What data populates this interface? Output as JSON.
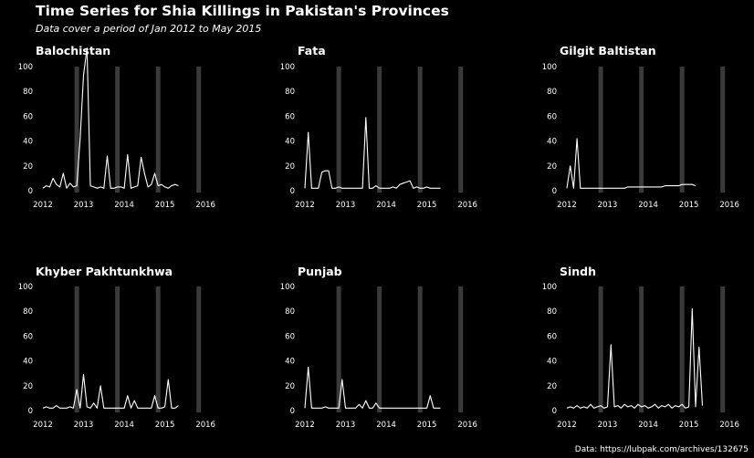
{
  "title": "Time Series for Shia Killings in Pakistan's Provinces",
  "subtitle": "Data cover a period of Jan 2012  to May 2015",
  "caption": "Data: https://lubpak.com/archives/132675",
  "chart_data": [
    {
      "type": "line",
      "panel": "Balochistan",
      "title": "Balochistan",
      "xlim": [
        "2012-01",
        "2016-05"
      ],
      "ylim": [
        0,
        100
      ],
      "x_ticks": [
        "2012",
        "2013",
        "2014",
        "2015",
        "2016"
      ],
      "y_ticks": [
        "0",
        "20",
        "40",
        "60",
        "80",
        "100"
      ],
      "shaded_periods": [
        "2012-11",
        "2013-11",
        "2014-11",
        "2015-11"
      ],
      "series": [
        {
          "x": [
            "2012-01",
            "2012-02",
            "2012-03",
            "2012-04",
            "2012-05",
            "2012-06",
            "2012-07",
            "2012-08",
            "2012-09",
            "2012-10",
            "2012-11",
            "2012-12",
            "2013-01",
            "2013-02",
            "2013-03",
            "2013-04",
            "2013-05",
            "2013-06",
            "2013-07",
            "2013-08",
            "2013-09",
            "2013-10",
            "2013-11",
            "2013-12",
            "2014-01",
            "2014-02",
            "2014-03",
            "2014-04",
            "2014-05",
            "2014-06",
            "2014-07",
            "2014-08",
            "2014-09",
            "2014-10",
            "2014-11",
            "2014-12",
            "2015-01",
            "2015-02",
            "2015-03",
            "2015-04",
            "2015-05"
          ],
          "y": [
            2,
            4,
            3,
            10,
            5,
            3,
            14,
            2,
            6,
            3,
            4,
            42,
            93,
            115,
            4,
            3,
            2,
            3,
            2,
            28,
            2,
            2,
            3,
            3,
            2,
            29,
            2,
            3,
            4,
            27,
            14,
            3,
            5,
            14,
            4,
            5,
            3,
            2,
            4,
            5,
            4
          ]
        }
      ]
    },
    {
      "type": "line",
      "panel": "Fata",
      "title": "Fata",
      "xlim": [
        "2012-01",
        "2016-05"
      ],
      "ylim": [
        0,
        100
      ],
      "x_ticks": [
        "2012",
        "2013",
        "2014",
        "2015",
        "2016"
      ],
      "y_ticks": [
        "0",
        "20",
        "40",
        "60",
        "80",
        "100"
      ],
      "shaded_periods": [
        "2012-11",
        "2013-11",
        "2014-11",
        "2015-11"
      ],
      "series": [
        {
          "x": [
            "2012-01",
            "2012-02",
            "2012-03",
            "2012-04",
            "2012-05",
            "2012-06",
            "2012-07",
            "2012-08",
            "2012-09",
            "2012-10",
            "2012-11",
            "2012-12",
            "2013-01",
            "2013-02",
            "2013-03",
            "2013-04",
            "2013-05",
            "2013-06",
            "2013-07",
            "2013-08",
            "2013-09",
            "2013-10",
            "2013-11",
            "2013-12",
            "2014-01",
            "2014-02",
            "2014-03",
            "2014-04",
            "2014-05",
            "2014-06",
            "2014-07",
            "2014-08",
            "2014-09",
            "2014-10",
            "2014-11",
            "2014-12",
            "2015-01",
            "2015-02",
            "2015-03",
            "2015-04",
            "2015-05"
          ],
          "y": [
            2,
            47,
            2,
            2,
            2,
            15,
            16,
            16,
            2,
            2,
            3,
            2,
            2,
            2,
            2,
            2,
            2,
            2,
            59,
            2,
            2,
            4,
            2,
            2,
            2,
            2,
            3,
            2,
            5,
            6,
            7,
            8,
            2,
            3,
            2,
            2,
            3,
            2,
            2,
            2,
            2
          ]
        }
      ]
    },
    {
      "type": "line",
      "panel": "Gilgit Baltistan",
      "title": "Gilgit Baltistan",
      "xlim": [
        "2012-01",
        "2016-05"
      ],
      "ylim": [
        0,
        100
      ],
      "x_ticks": [
        "2012",
        "2013",
        "2014",
        "2015",
        "2016"
      ],
      "y_ticks": [
        "0",
        "20",
        "40",
        "60",
        "80",
        "100"
      ],
      "shaded_periods": [
        "2012-11",
        "2013-11",
        "2014-11",
        "2015-11"
      ],
      "series": [
        {
          "x": [
            "2012-01",
            "2012-02",
            "2012-03",
            "2012-04",
            "2012-05",
            "2012-06",
            "2012-07",
            "2012-08",
            "2012-09",
            "2012-10",
            "2012-11",
            "2012-12",
            "2013-01",
            "2013-02",
            "2013-03",
            "2013-04",
            "2013-05",
            "2013-06",
            "2013-07",
            "2013-08",
            "2013-09",
            "2013-10",
            "2013-11",
            "2013-12",
            "2014-01",
            "2014-02",
            "2014-03",
            "2014-04",
            "2014-05",
            "2014-06",
            "2014-07",
            "2014-08",
            "2014-09",
            "2014-10",
            "2014-11",
            "2014-12",
            "2015-01",
            "2015-02",
            "2015-03"
          ],
          "y": [
            2,
            20,
            2,
            42,
            2,
            2,
            2,
            2,
            2,
            2,
            2,
            2,
            2,
            2,
            2,
            2,
            2,
            2,
            3,
            3,
            3,
            3,
            3,
            3,
            3,
            3,
            3,
            3,
            3,
            4,
            4,
            4,
            4,
            4,
            5,
            5,
            5,
            5,
            4
          ]
        }
      ]
    },
    {
      "type": "line",
      "panel": "Khyber Pakhtunkhwa",
      "title": "Khyber Pakhtunkhwa",
      "xlim": [
        "2012-01",
        "2016-05"
      ],
      "ylim": [
        0,
        100
      ],
      "x_ticks": [
        "2012",
        "2013",
        "2014",
        "2015",
        "2016"
      ],
      "y_ticks": [
        "0",
        "20",
        "40",
        "60",
        "80",
        "100"
      ],
      "shaded_periods": [
        "2012-11",
        "2013-11",
        "2014-11",
        "2015-11"
      ],
      "series": [
        {
          "x": [
            "2012-01",
            "2012-02",
            "2012-03",
            "2012-04",
            "2012-05",
            "2012-06",
            "2012-07",
            "2012-08",
            "2012-09",
            "2012-10",
            "2012-11",
            "2012-12",
            "2013-01",
            "2013-02",
            "2013-03",
            "2013-04",
            "2013-05",
            "2013-06",
            "2013-07",
            "2013-08",
            "2013-09",
            "2013-10",
            "2013-11",
            "2013-12",
            "2014-01",
            "2014-02",
            "2014-03",
            "2014-04",
            "2014-05",
            "2014-06",
            "2014-07",
            "2014-08",
            "2014-09",
            "2014-10",
            "2014-11",
            "2014-12",
            "2015-01",
            "2015-02",
            "2015-03",
            "2015-04",
            "2015-05"
          ],
          "y": [
            2,
            3,
            2,
            2,
            4,
            2,
            2,
            2,
            3,
            2,
            17,
            2,
            29,
            3,
            2,
            6,
            2,
            20,
            2,
            2,
            2,
            2,
            2,
            2,
            2,
            12,
            2,
            8,
            2,
            2,
            2,
            2,
            2,
            12,
            2,
            2,
            3,
            25,
            2,
            2,
            4
          ]
        }
      ]
    },
    {
      "type": "line",
      "panel": "Punjab",
      "title": "Punjab",
      "xlim": [
        "2012-01",
        "2016-05"
      ],
      "ylim": [
        0,
        100
      ],
      "x_ticks": [
        "2012",
        "2013",
        "2014",
        "2015",
        "2016"
      ],
      "y_ticks": [
        "0",
        "20",
        "40",
        "60",
        "80",
        "100"
      ],
      "shaded_periods": [
        "2012-11",
        "2013-11",
        "2014-11",
        "2015-11"
      ],
      "series": [
        {
          "x": [
            "2012-01",
            "2012-02",
            "2012-03",
            "2012-04",
            "2012-05",
            "2012-06",
            "2012-07",
            "2012-08",
            "2012-09",
            "2012-10",
            "2012-11",
            "2012-12",
            "2013-01",
            "2013-02",
            "2013-03",
            "2013-04",
            "2013-05",
            "2013-06",
            "2013-07",
            "2013-08",
            "2013-09",
            "2013-10",
            "2013-11",
            "2013-12",
            "2014-01",
            "2014-02",
            "2014-03",
            "2014-04",
            "2014-05",
            "2014-06",
            "2014-07",
            "2014-08",
            "2014-09",
            "2014-10",
            "2014-11",
            "2014-12",
            "2015-01",
            "2015-02",
            "2015-03",
            "2015-04",
            "2015-05"
          ],
          "y": [
            2,
            35,
            2,
            2,
            2,
            2,
            3,
            2,
            2,
            2,
            2,
            25,
            2,
            2,
            2,
            2,
            5,
            2,
            8,
            2,
            2,
            6,
            2,
            2,
            2,
            2,
            2,
            2,
            2,
            2,
            2,
            2,
            2,
            2,
            2,
            2,
            2,
            12,
            2,
            2,
            2
          ]
        }
      ]
    },
    {
      "type": "line",
      "panel": "Sindh",
      "title": "Sindh",
      "xlim": [
        "2012-01",
        "2016-05"
      ],
      "ylim": [
        0,
        100
      ],
      "x_ticks": [
        "2012",
        "2013",
        "2014",
        "2015",
        "2016"
      ],
      "y_ticks": [
        "0",
        "20",
        "40",
        "60",
        "80",
        "100"
      ],
      "shaded_periods": [
        "2012-11",
        "2013-11",
        "2014-11",
        "2015-11"
      ],
      "series": [
        {
          "x": [
            "2012-01",
            "2012-02",
            "2012-03",
            "2012-04",
            "2012-05",
            "2012-06",
            "2012-07",
            "2012-08",
            "2012-09",
            "2012-10",
            "2012-11",
            "2012-12",
            "2013-01",
            "2013-02",
            "2013-03",
            "2013-04",
            "2013-05",
            "2013-06",
            "2013-07",
            "2013-08",
            "2013-09",
            "2013-10",
            "2013-11",
            "2013-12",
            "2014-01",
            "2014-02",
            "2014-03",
            "2014-04",
            "2014-05",
            "2014-06",
            "2014-07",
            "2014-08",
            "2014-09",
            "2014-10",
            "2014-11",
            "2014-12",
            "2015-01",
            "2015-02",
            "2015-03",
            "2015-04",
            "2015-05"
          ],
          "y": [
            2,
            3,
            2,
            4,
            2,
            3,
            2,
            5,
            2,
            3,
            4,
            2,
            3,
            53,
            3,
            4,
            2,
            5,
            3,
            4,
            2,
            5,
            3,
            4,
            2,
            3,
            5,
            2,
            4,
            3,
            5,
            2,
            4,
            3,
            5,
            2,
            3,
            82,
            3,
            51,
            4
          ]
        }
      ]
    }
  ]
}
